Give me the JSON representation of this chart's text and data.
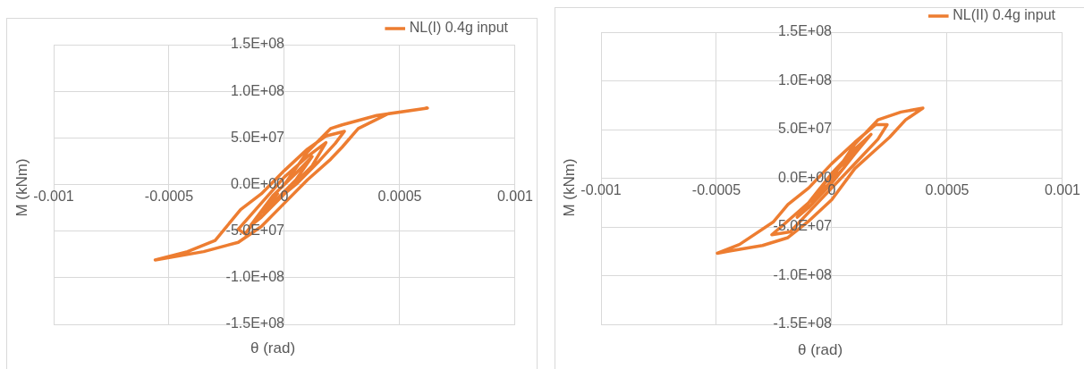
{
  "chart_data": [
    {
      "type": "line",
      "xlabel": "θ (rad)",
      "ylabel": "M (kNm)",
      "xlim": [
        -0.001,
        0.001
      ],
      "xticks": [
        -0.001,
        -0.0005,
        0,
        0.0005,
        0.001
      ],
      "ylim": [
        -150000000,
        150000000
      ],
      "yticks": [
        {
          "value": -150000000,
          "label": "-1.5E+08"
        },
        {
          "value": -100000000,
          "label": "-1.0E+08"
        },
        {
          "value": -50000000,
          "label": "-5.0E+07"
        },
        {
          "value": 0,
          "label": "0.0E+00"
        },
        {
          "value": 50000000,
          "label": "5.0E+07"
        },
        {
          "value": 100000000,
          "label": "1.0E+08"
        },
        {
          "value": 150000000,
          "label": "1.5E+08"
        }
      ],
      "grid": true,
      "legend": "top right",
      "marker": "none",
      "line_style": "solid",
      "x": [
        0,
        0.0001,
        0.0002,
        0.00025,
        0.0004,
        0.00062,
        0.00045,
        0.00032,
        0.00025,
        0.0002,
        0.0001,
        0,
        -0.0001,
        -0.0002,
        -0.00035,
        -0.00056,
        -0.00042,
        -0.0003,
        -0.00019,
        -0.0001,
        0,
        0.0001,
        0.00018,
        0.00026,
        0.00022,
        0.00015,
        5e-05,
        -0.0001,
        -0.00017,
        -0.0002,
        -0.0001,
        0,
        0.0001,
        0.00018,
        0.00012,
        0,
        -0.0001,
        -0.00015,
        -5e-05,
        5e-05,
        0.00012,
        5e-05,
        -5e-05,
        -0.0001,
        -3e-05
      ],
      "series": [
        {
          "name": "NL(I) 0.4g input",
          "color": "#ed7d31",
          "values": [
            0,
            35000000,
            60000000,
            64000000,
            74000000,
            82000000,
            76000000,
            60000000,
            40000000,
            27000000,
            5000000,
            -20000000,
            -45000000,
            -62000000,
            -72000000,
            -81000000,
            -72000000,
            -60000000,
            -27000000,
            -10000000,
            15000000,
            38000000,
            52000000,
            57000000,
            44000000,
            25000000,
            0,
            -30000000,
            -53000000,
            -48000000,
            -20000000,
            8000000,
            30000000,
            45000000,
            20000000,
            -10000000,
            -35000000,
            -45000000,
            -12000000,
            12000000,
            30000000,
            5000000,
            -20000000,
            -30000000,
            -10000000
          ]
        }
      ]
    },
    {
      "type": "line",
      "xlabel": "θ (rad)",
      "ylabel": "M (kNm)",
      "xlim": [
        -0.001,
        0.001
      ],
      "xticks": [
        -0.001,
        -0.0005,
        0,
        0.0005,
        0.001
      ],
      "ylim": [
        -150000000,
        150000000
      ],
      "yticks": [
        {
          "value": -150000000,
          "label": "-1.5E+08"
        },
        {
          "value": -100000000,
          "label": "-1.0E+08"
        },
        {
          "value": -50000000,
          "label": "-5.0E+07"
        },
        {
          "value": 0,
          "label": "0.0E+00"
        },
        {
          "value": 50000000,
          "label": "5.0E+07"
        },
        {
          "value": 100000000,
          "label": "1.0E+08"
        },
        {
          "value": 150000000,
          "label": "1.5E+08"
        }
      ],
      "grid": true,
      "legend": "top right",
      "marker": "none",
      "line_style": "solid",
      "x": [
        0,
        0.0001,
        0.0002,
        0.0003,
        0.000395,
        0.00032,
        0.00025,
        0.00018,
        0.0001,
        0,
        -0.0001,
        -0.00019,
        -0.0003,
        -0.00045,
        -0.000496,
        -0.0004,
        -0.000254,
        -0.00019,
        -0.0001,
        0,
        0.0001,
        0.00019,
        0.00024,
        0.0002,
        0.00012,
        0,
        -0.0001,
        -0.00018,
        -0.00026,
        -0.00022,
        -0.0001,
        0,
        0.0001,
        0.00017,
        0.0001,
        0,
        -0.0001,
        -0.00015,
        -5e-05,
        5e-05,
        0.00012,
        5e-05,
        -5e-05,
        -0.0001,
        -3e-05
      ],
      "series": [
        {
          "name": "NL(II) 0.4g input",
          "color": "#ed7d31",
          "values": [
            0,
            35000000,
            60000000,
            68000000,
            72000000,
            60000000,
            42000000,
            27000000,
            10000000,
            -22000000,
            -44000000,
            -61000000,
            -69000000,
            -75000000,
            -77000000,
            -68000000,
            -45000000,
            -27000000,
            -10000000,
            15000000,
            37000000,
            55000000,
            55000000,
            40000000,
            20000000,
            -10000000,
            -35000000,
            -55000000,
            -58000000,
            -50000000,
            -25000000,
            5000000,
            30000000,
            45000000,
            25000000,
            -5000000,
            -30000000,
            -40000000,
            -10000000,
            15000000,
            32000000,
            10000000,
            -15000000,
            -25000000,
            -8000000
          ]
        }
      ]
    }
  ]
}
